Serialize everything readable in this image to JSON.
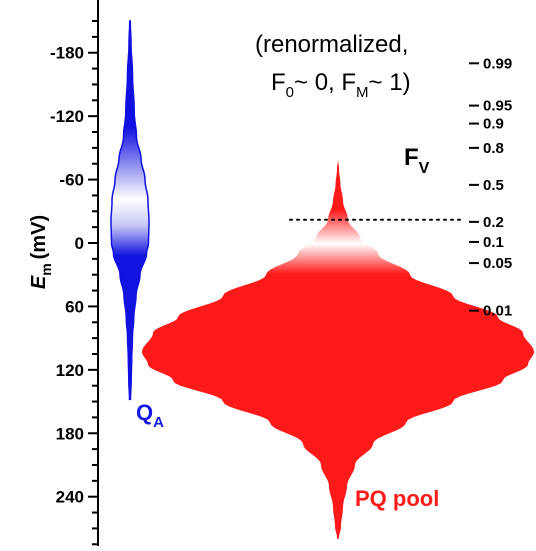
{
  "chart_data": {
    "type": "area",
    "ylabel": {
      "symbol": "E",
      "sub": "m",
      "unit": "(mV)"
    },
    "yaxis": {
      "min": -210,
      "max": 295,
      "inverted": true,
      "ticks": [
        -180,
        -120,
        -60,
        0,
        60,
        120,
        180,
        240
      ],
      "tick_labels": [
        "-180",
        "-120",
        "-60",
        "0",
        "60",
        "120",
        "180",
        "240"
      ],
      "minor_step": 15
    },
    "note": {
      "line1": "(renormalized,",
      "line2": {
        "p1": "F",
        "s1": "0",
        "p2": "~ 0, F",
        "s2": "M",
        "p3": "~ 1)"
      }
    },
    "fv_axis": {
      "label": {
        "main": "F",
        "sub": "V"
      },
      "ticks": [
        {
          "label": "0.99",
          "em": -170
        },
        {
          "label": "0.95",
          "em": -130
        },
        {
          "label": "0.9",
          "em": -113
        },
        {
          "label": "0.8",
          "em": -90
        },
        {
          "label": "0.5",
          "em": -55
        },
        {
          "label": "0.2",
          "em": -20
        },
        {
          "label": "0.1",
          "em": -1
        },
        {
          "label": "0.05",
          "em": 19
        },
        {
          "label": "0.01",
          "em": 64
        }
      ]
    },
    "reference_line": {
      "em": -22,
      "style": "dotted"
    },
    "series": [
      {
        "name": "Q",
        "name_sub": "A",
        "color": "#1010e0",
        "peak_em": 5,
        "range_em": [
          -210,
          148
        ],
        "halfwidth_profile": [
          [
            -210,
            0.3
          ],
          [
            -188,
            1.0
          ],
          [
            -160,
            2.5
          ],
          [
            -125,
            4.2
          ],
          [
            -100,
            6.5
          ],
          [
            -80,
            11.0
          ],
          [
            -60,
            15.0
          ],
          [
            -40,
            18.0
          ],
          [
            -20,
            19.0
          ],
          [
            0,
            18.5
          ],
          [
            10,
            16.5
          ],
          [
            30,
            10.0
          ],
          [
            50,
            6.0
          ],
          [
            70,
            3.8
          ],
          [
            90,
            2.4
          ],
          [
            110,
            1.7
          ],
          [
            130,
            1.2
          ],
          [
            148,
            0.5
          ]
        ]
      },
      {
        "name": "PQ pool",
        "color": "#ff1a1a",
        "peak_em": 103,
        "range_em": [
          -78,
          280
        ],
        "halfwidth_profile": [
          [
            -78,
            0.2
          ],
          [
            -70,
            1.0
          ],
          [
            -55,
            2.5
          ],
          [
            -40,
            5.0
          ],
          [
            -22,
            10.0
          ],
          [
            -5,
            22.0
          ],
          [
            10,
            40.0
          ],
          [
            30,
            72.0
          ],
          [
            50,
            115.0
          ],
          [
            70,
            160.0
          ],
          [
            85,
            185.0
          ],
          [
            103,
            196.0
          ],
          [
            115,
            190.0
          ],
          [
            130,
            165.0
          ],
          [
            150,
            115.0
          ],
          [
            170,
            68.0
          ],
          [
            190,
            35.0
          ],
          [
            210,
            17.0
          ],
          [
            230,
            9.0
          ],
          [
            250,
            5.0
          ],
          [
            268,
            3.0
          ],
          [
            280,
            0.8
          ]
        ]
      }
    ]
  }
}
